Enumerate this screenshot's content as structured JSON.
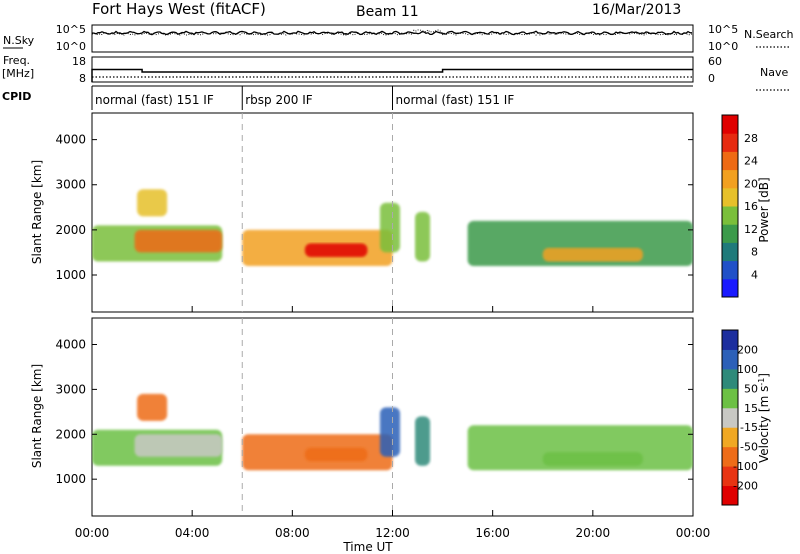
{
  "header": {
    "station": "Fort Hays West (fitACF)",
    "beam": "Beam 11",
    "date": "16/Mar/2013"
  },
  "side_labels": {
    "nsky": "N.Sky",
    "nsearch": "N.Search",
    "freq": "Freq.",
    "mhz": "[MHz]",
    "nave": "Nave",
    "cpid": "CPID"
  },
  "noise_panel": {
    "left_ticks": [
      "10^5",
      "10^0"
    ],
    "right_ticks": [
      "10^5",
      "10^0"
    ]
  },
  "freq_panel": {
    "left_ticks": [
      "18",
      "8"
    ],
    "right_ticks": [
      "60",
      "0"
    ],
    "freq_levels": [
      {
        "t": 0.0,
        "mhz": 13.0
      },
      {
        "t": 2.0,
        "mhz": 12.0
      },
      {
        "t": 14.0,
        "mhz": 13.0
      },
      {
        "t": 24.0,
        "mhz": 13.0
      }
    ],
    "nave_level": 12
  },
  "cpid_segments": [
    {
      "start": 0,
      "end": 6,
      "label": "normal (fast) 151 IF"
    },
    {
      "start": 6,
      "end": 12,
      "label": "rbsp 200 IF"
    },
    {
      "start": 12,
      "end": 24,
      "label": "normal (fast) 151 IF"
    }
  ],
  "x_axis": {
    "label": "Time UT",
    "ticks": [
      "00:00",
      "04:00",
      "08:00",
      "12:00",
      "16:00",
      "20:00",
      "00:00"
    ],
    "range_hours": [
      0,
      24
    ]
  },
  "y_axis": {
    "label": "Slant Range [km]",
    "ticks": [
      "1000",
      "2000",
      "3000",
      "4000"
    ],
    "range_km": [
      180,
      4590
    ]
  },
  "colorbars": {
    "power": {
      "label": "Power [dB]",
      "ticks": [
        "4",
        "8",
        "12",
        "16",
        "20",
        "24",
        "28"
      ],
      "colors": [
        "#1a1aff",
        "#2050c8",
        "#1f7a7a",
        "#3b9a4a",
        "#7abf3a",
        "#e6c02a",
        "#f2a020",
        "#ee6a14",
        "#e62a10",
        "#e00000"
      ]
    },
    "velocity": {
      "label": "Velocity [m s^-1]",
      "ticks": [
        "200",
        "100",
        "50",
        "15",
        "-15",
        "-50",
        "-100",
        "-200"
      ],
      "colors": [
        "#1c2e9e",
        "#2c60b8",
        "#2f8a7a",
        "#6cc044",
        "#c8c8c4",
        "#f0a824",
        "#ee6c18",
        "#e83412",
        "#e00000"
      ]
    }
  },
  "chart_data": {
    "type": "heatmap",
    "title": "Fort Hays West (fitACF)",
    "beam": "Beam 11",
    "date": "16/Mar/2013",
    "xlabel": "Time UT",
    "ylabel": "Slant Range [km]",
    "x_range_hours": [
      0,
      24
    ],
    "y_range_km": [
      180,
      4590
    ],
    "series": [
      {
        "name": "Power [dB]",
        "value_range": [
          0,
          30
        ]
      },
      {
        "name": "Velocity [m s^-1]",
        "value_range": [
          -200,
          200
        ]
      }
    ],
    "echo_regions": [
      {
        "t_start": 0.0,
        "t_end": 5.2,
        "km_low": 1300,
        "km_high": 2100,
        "power_db": 12,
        "velocity": -10
      },
      {
        "t_start": 1.7,
        "t_end": 5.2,
        "km_low": 1500,
        "km_high": 2000,
        "power_db": 22,
        "velocity": -30
      },
      {
        "t_start": 1.8,
        "t_end": 3.0,
        "km_low": 2300,
        "km_high": 2900,
        "power_db": 16,
        "velocity": -180
      },
      {
        "t_start": 6.0,
        "t_end": 12.0,
        "km_low": 1200,
        "km_high": 2000,
        "power_db": 18,
        "velocity": -160
      },
      {
        "t_start": 8.5,
        "t_end": 11.0,
        "km_low": 1400,
        "km_high": 1700,
        "power_db": 28,
        "velocity": -190
      },
      {
        "t_start": 11.5,
        "t_end": 12.3,
        "km_low": 1500,
        "km_high": 2600,
        "power_db": 14,
        "velocity": 80
      },
      {
        "t_start": 12.9,
        "t_end": 13.5,
        "km_low": 1300,
        "km_high": 2400,
        "power_db": 12,
        "velocity": 30
      },
      {
        "t_start": 15.0,
        "t_end": 24.0,
        "km_low": 1200,
        "km_high": 2200,
        "power_db": 10,
        "velocity": -5
      },
      {
        "t_start": 18.0,
        "t_end": 22.0,
        "km_low": 1300,
        "km_high": 1600,
        "power_db": 20,
        "velocity": -10
      }
    ]
  }
}
